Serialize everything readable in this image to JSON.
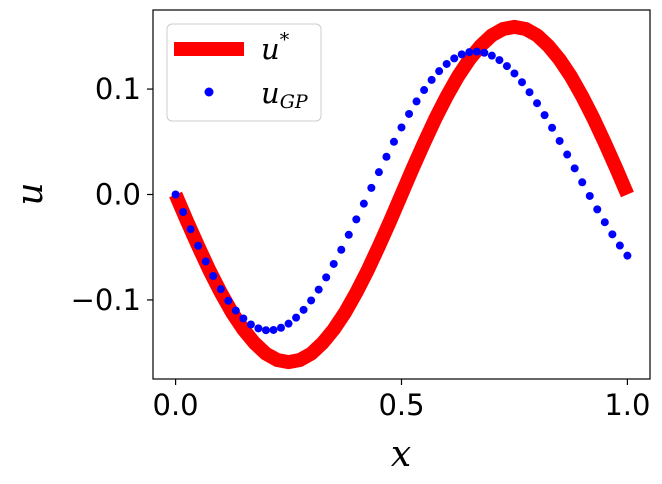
{
  "chart_data": {
    "type": "line",
    "xlabel": "x",
    "ylabel": "u",
    "xlim": [
      -0.05,
      1.05
    ],
    "ylim": [
      -0.175,
      0.175
    ],
    "x_ticks": [
      0.0,
      0.5,
      1.0
    ],
    "x_tick_labels": [
      "0.0",
      "0.5",
      "1.0"
    ],
    "y_ticks": [
      -0.1,
      0.0,
      0.1
    ],
    "y_tick_labels": [
      "−0.1",
      "0.0",
      "0.1"
    ],
    "grid": false,
    "legend_position": "top-left",
    "series": [
      {
        "name": "u*",
        "legend_main": "u",
        "legend_sup": "*",
        "style": "thick-line",
        "color": "#ff0000",
        "x": [
          0.0,
          0.025,
          0.05,
          0.075,
          0.1,
          0.125,
          0.15,
          0.175,
          0.2,
          0.225,
          0.25,
          0.275,
          0.3,
          0.325,
          0.35,
          0.375,
          0.4,
          0.425,
          0.45,
          0.475,
          0.5,
          0.525,
          0.55,
          0.575,
          0.6,
          0.625,
          0.65,
          0.675,
          0.7,
          0.725,
          0.75,
          0.775,
          0.8,
          0.825,
          0.85,
          0.875,
          0.9,
          0.925,
          0.95,
          0.975,
          1.0
        ],
        "y": [
          0.0,
          -0.025,
          -0.049,
          -0.072,
          -0.093,
          -0.112,
          -0.128,
          -0.141,
          -0.151,
          -0.157,
          -0.159,
          -0.157,
          -0.151,
          -0.141,
          -0.128,
          -0.112,
          -0.093,
          -0.072,
          -0.049,
          -0.025,
          0.0,
          0.025,
          0.049,
          0.072,
          0.093,
          0.112,
          0.128,
          0.141,
          0.151,
          0.157,
          0.159,
          0.157,
          0.151,
          0.141,
          0.128,
          0.112,
          0.093,
          0.072,
          0.049,
          0.025,
          0.0
        ]
      },
      {
        "name": "uGP",
        "legend_main": "u",
        "legend_sub": "GP",
        "style": "dots",
        "color": "#0000ff",
        "x": [
          0.0,
          0.0167,
          0.0333,
          0.05,
          0.0667,
          0.0833,
          0.1,
          0.1167,
          0.1333,
          0.15,
          0.1667,
          0.1833,
          0.2,
          0.2167,
          0.2333,
          0.25,
          0.2667,
          0.2833,
          0.3,
          0.3167,
          0.3333,
          0.35,
          0.3667,
          0.3833,
          0.4,
          0.4167,
          0.4333,
          0.45,
          0.4667,
          0.4833,
          0.5,
          0.5167,
          0.5333,
          0.55,
          0.5667,
          0.5833,
          0.6,
          0.6167,
          0.6333,
          0.65,
          0.6667,
          0.6833,
          0.7,
          0.7167,
          0.7333,
          0.75,
          0.7667,
          0.7833,
          0.8,
          0.8167,
          0.8333,
          0.85,
          0.8667,
          0.8833,
          0.9,
          0.9167,
          0.9333,
          0.95,
          0.9667,
          0.9833,
          1.0
        ],
        "y": [
          0.0,
          -0.0166,
          -0.0329,
          -0.0486,
          -0.0635,
          -0.0773,
          -0.0898,
          -0.1008,
          -0.1101,
          -0.1176,
          -0.1233,
          -0.127,
          -0.1287,
          -0.1285,
          -0.1264,
          -0.1225,
          -0.1168,
          -0.1094,
          -0.1005,
          -0.0902,
          -0.0786,
          -0.0659,
          -0.0524,
          -0.0382,
          -0.0236,
          -0.0087,
          0.0063,
          0.0212,
          0.0358,
          0.05,
          0.0636,
          0.0764,
          0.0883,
          0.0991,
          0.1087,
          0.117,
          0.1238,
          0.1291,
          0.1329,
          0.135,
          0.1355,
          0.1344,
          0.1317,
          0.1275,
          0.1218,
          0.1148,
          0.1065,
          0.097,
          0.0866,
          0.0753,
          0.0633,
          0.0508,
          0.0379,
          0.0248,
          0.0116,
          -0.0014,
          -0.0141,
          -0.0263,
          -0.0378,
          -0.0484,
          -0.058
        ]
      }
    ]
  }
}
